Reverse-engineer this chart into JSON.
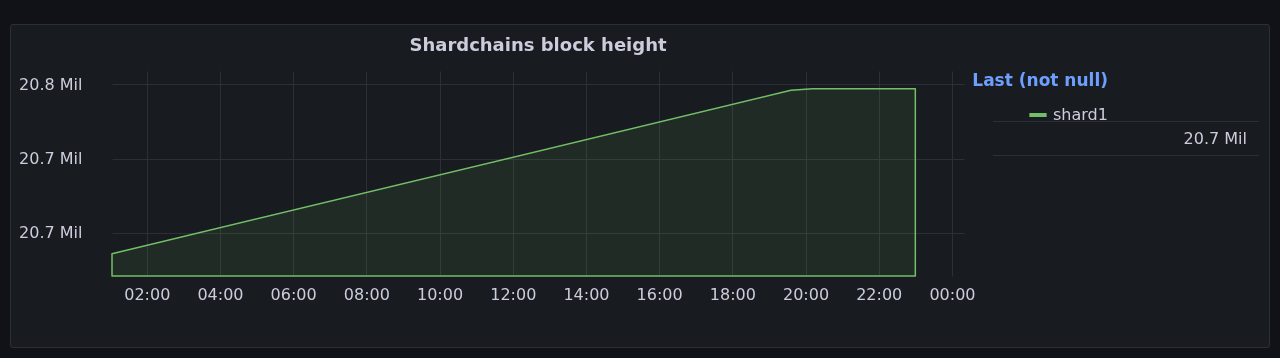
{
  "chart_data": {
    "type": "area",
    "title": "Shardchains block height",
    "x": [
      1.05,
      19.6,
      20.2,
      23.0
    ],
    "series": [
      {
        "name": "shard1",
        "color": "#73bf69",
        "values": [
          20.636,
          20.746,
          20.747,
          20.747
        ]
      }
    ],
    "xlim": [
      1.05,
      24.33
    ],
    "xticks": [
      {
        "value": 2,
        "label": "02:00"
      },
      {
        "value": 4,
        "label": "04:00"
      },
      {
        "value": 6,
        "label": "06:00"
      },
      {
        "value": 8,
        "label": "08:00"
      },
      {
        "value": 10,
        "label": "10:00"
      },
      {
        "value": 12,
        "label": "12:00"
      },
      {
        "value": 14,
        "label": "14:00"
      },
      {
        "value": 16,
        "label": "16:00"
      },
      {
        "value": 18,
        "label": "18:00"
      },
      {
        "value": 20,
        "label": "20:00"
      },
      {
        "value": 22,
        "label": "22:00"
      },
      {
        "value": 24,
        "label": "00:00"
      }
    ],
    "ylim": [
      20.621,
      20.759
    ],
    "yticks": [
      {
        "value": 20.65,
        "label": "20.7 Mil"
      },
      {
        "value": 20.7,
        "label": "20.7 Mil"
      },
      {
        "value": 20.75,
        "label": "20.8 Mil"
      }
    ],
    "grid": true,
    "legend": "top right",
    "legend_title": "Last (not null)",
    "annotations": [
      "20.7 Mil"
    ]
  }
}
